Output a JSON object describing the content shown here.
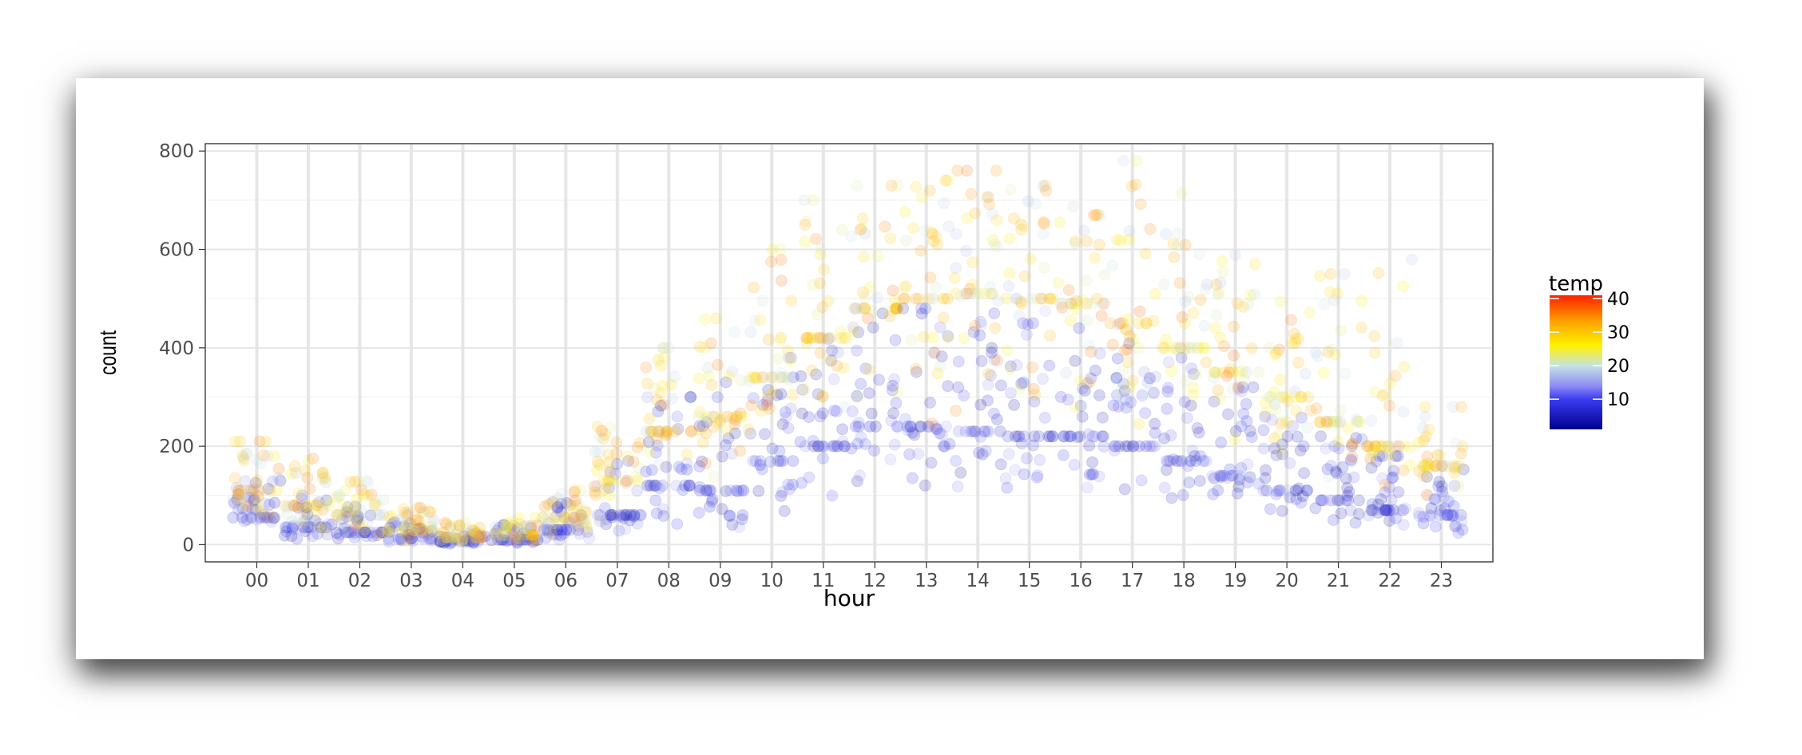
{
  "chart_data": {
    "type": "scatter",
    "title": "",
    "xlabel": "hour",
    "ylabel": "count",
    "categories": [
      "00",
      "01",
      "02",
      "03",
      "04",
      "05",
      "06",
      "07",
      "08",
      "09",
      "10",
      "11",
      "12",
      "13",
      "14",
      "15",
      "16",
      "17",
      "18",
      "19",
      "20",
      "21",
      "22",
      "23"
    ],
    "y_ticks": [
      0,
      200,
      400,
      600,
      800
    ],
    "ylim": [
      -35,
      815
    ],
    "grid": true,
    "point_alpha": 0.18,
    "color_scale": {
      "title": "temp",
      "breaks": [
        10,
        20,
        30,
        40
      ],
      "range": [
        1,
        41
      ],
      "stops": [
        {
          "value": 1,
          "color": "#00008b"
        },
        {
          "value": 10,
          "color": "#3a3cf2"
        },
        {
          "value": 14,
          "color": "#8f8cf5"
        },
        {
          "value": 20,
          "color": "#c6e3e3"
        },
        {
          "value": 26,
          "color": "#fff200"
        },
        {
          "value": 33,
          "color": "#ffa500"
        },
        {
          "value": 41,
          "color": "#ff2000"
        }
      ]
    },
    "hourly_profile": [
      {
        "hour": "00",
        "cold": [
          20,
          55,
          130
        ],
        "warm": [
          40,
          110,
          210
        ]
      },
      {
        "hour": "01",
        "cold": [
          10,
          35,
          100
        ],
        "warm": [
          25,
          80,
          175
        ]
      },
      {
        "hour": "02",
        "cold": [
          5,
          25,
          80
        ],
        "warm": [
          15,
          60,
          130
        ]
      },
      {
        "hour": "03",
        "cold": [
          2,
          12,
          45
        ],
        "warm": [
          5,
          30,
          75
        ]
      },
      {
        "hour": "04",
        "cold": [
          1,
          6,
          25
        ],
        "warm": [
          3,
          15,
          45
        ]
      },
      {
        "hour": "05",
        "cold": [
          2,
          10,
          40
        ],
        "warm": [
          5,
          20,
          55
        ]
      },
      {
        "hour": "06",
        "cold": [
          5,
          30,
          90
        ],
        "warm": [
          15,
          55,
          110
        ]
      },
      {
        "hour": "07",
        "cold": [
          10,
          60,
          170
        ],
        "warm": [
          30,
          130,
          240
        ]
      },
      {
        "hour": "08",
        "cold": [
          20,
          120,
          300
        ],
        "warm": [
          60,
          230,
          400
        ]
      },
      {
        "hour": "09",
        "cold": [
          25,
          110,
          330
        ],
        "warm": [
          80,
          260,
          460
        ]
      },
      {
        "hour": "10",
        "cold": [
          30,
          170,
          380
        ],
        "warm": [
          120,
          340,
          600
        ]
      },
      {
        "hour": "11",
        "cold": [
          40,
          200,
          430
        ],
        "warm": [
          180,
          420,
          700
        ]
      },
      {
        "hour": "12",
        "cold": [
          50,
          240,
          470
        ],
        "warm": [
          220,
          480,
          730
        ]
      },
      {
        "hour": "13",
        "cold": [
          60,
          240,
          480
        ],
        "warm": [
          240,
          500,
          740
        ]
      },
      {
        "hour": "14",
        "cold": [
          60,
          230,
          470
        ],
        "warm": [
          250,
          510,
          760
        ]
      },
      {
        "hour": "15",
        "cold": [
          60,
          220,
          450
        ],
        "warm": [
          240,
          500,
          730
        ]
      },
      {
        "hour": "16",
        "cold": [
          60,
          220,
          440
        ],
        "warm": [
          240,
          490,
          720
        ]
      },
      {
        "hour": "17",
        "cold": [
          60,
          200,
          420
        ],
        "warm": [
          230,
          450,
          780
        ]
      },
      {
        "hour": "18",
        "cold": [
          50,
          170,
          380
        ],
        "warm": [
          200,
          400,
          720
        ]
      },
      {
        "hour": "19",
        "cold": [
          40,
          140,
          320
        ],
        "warm": [
          180,
          350,
          600
        ]
      },
      {
        "hour": "20",
        "cold": [
          30,
          110,
          260
        ],
        "warm": [
          150,
          300,
          500
        ]
      },
      {
        "hour": "21",
        "cold": [
          20,
          90,
          220
        ],
        "warm": [
          110,
          250,
          550
        ]
      },
      {
        "hour": "22",
        "cold": [
          15,
          70,
          180
        ],
        "warm": [
          90,
          200,
          590
        ]
      },
      {
        "hour": "23",
        "cold": [
          10,
          60,
          160
        ],
        "warm": [
          70,
          160,
          280
        ]
      }
    ]
  }
}
